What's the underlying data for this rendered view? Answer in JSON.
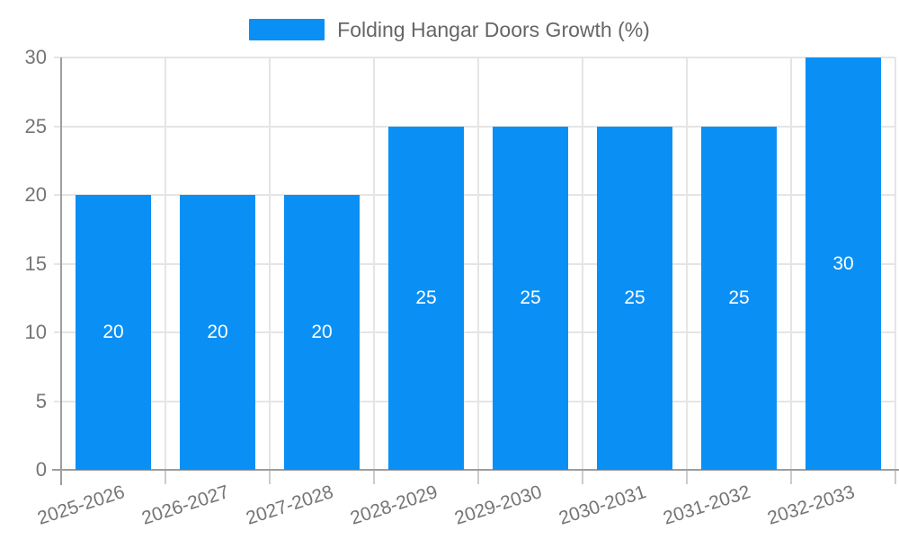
{
  "chart_data": {
    "type": "bar",
    "title": "Folding Hangar Doors Growth (%)",
    "categories": [
      "2025-2026",
      "2026-2027",
      "2027-2028",
      "2028-2029",
      "2029-2030",
      "2030-2031",
      "2031-2032",
      "2032-2033"
    ],
    "values": [
      20,
      20,
      20,
      25,
      25,
      25,
      25,
      30
    ],
    "xlabel": "",
    "ylabel": "",
    "ylim": [
      0,
      30
    ],
    "yticks": [
      0,
      5,
      10,
      15,
      20,
      25,
      30
    ],
    "grid": "on",
    "legend_position": "top-center",
    "bar_labels": [
      "20",
      "20",
      "20",
      "25",
      "25",
      "25",
      "25",
      "30"
    ],
    "y_tick_labels": [
      "0",
      "5",
      "10",
      "15",
      "20",
      "25",
      "30"
    ]
  },
  "legend": {
    "label": "Folding Hangar Doors Growth (%)"
  },
  "colors": {
    "bar": "#0a90f5",
    "grid": "#e5e5e5",
    "axis": "#9e9e9e",
    "tick": "#cccccc",
    "tick_text": "#757575",
    "legend_text": "#666666",
    "bar_label_text": "#ffffff",
    "background": "#ffffff"
  }
}
